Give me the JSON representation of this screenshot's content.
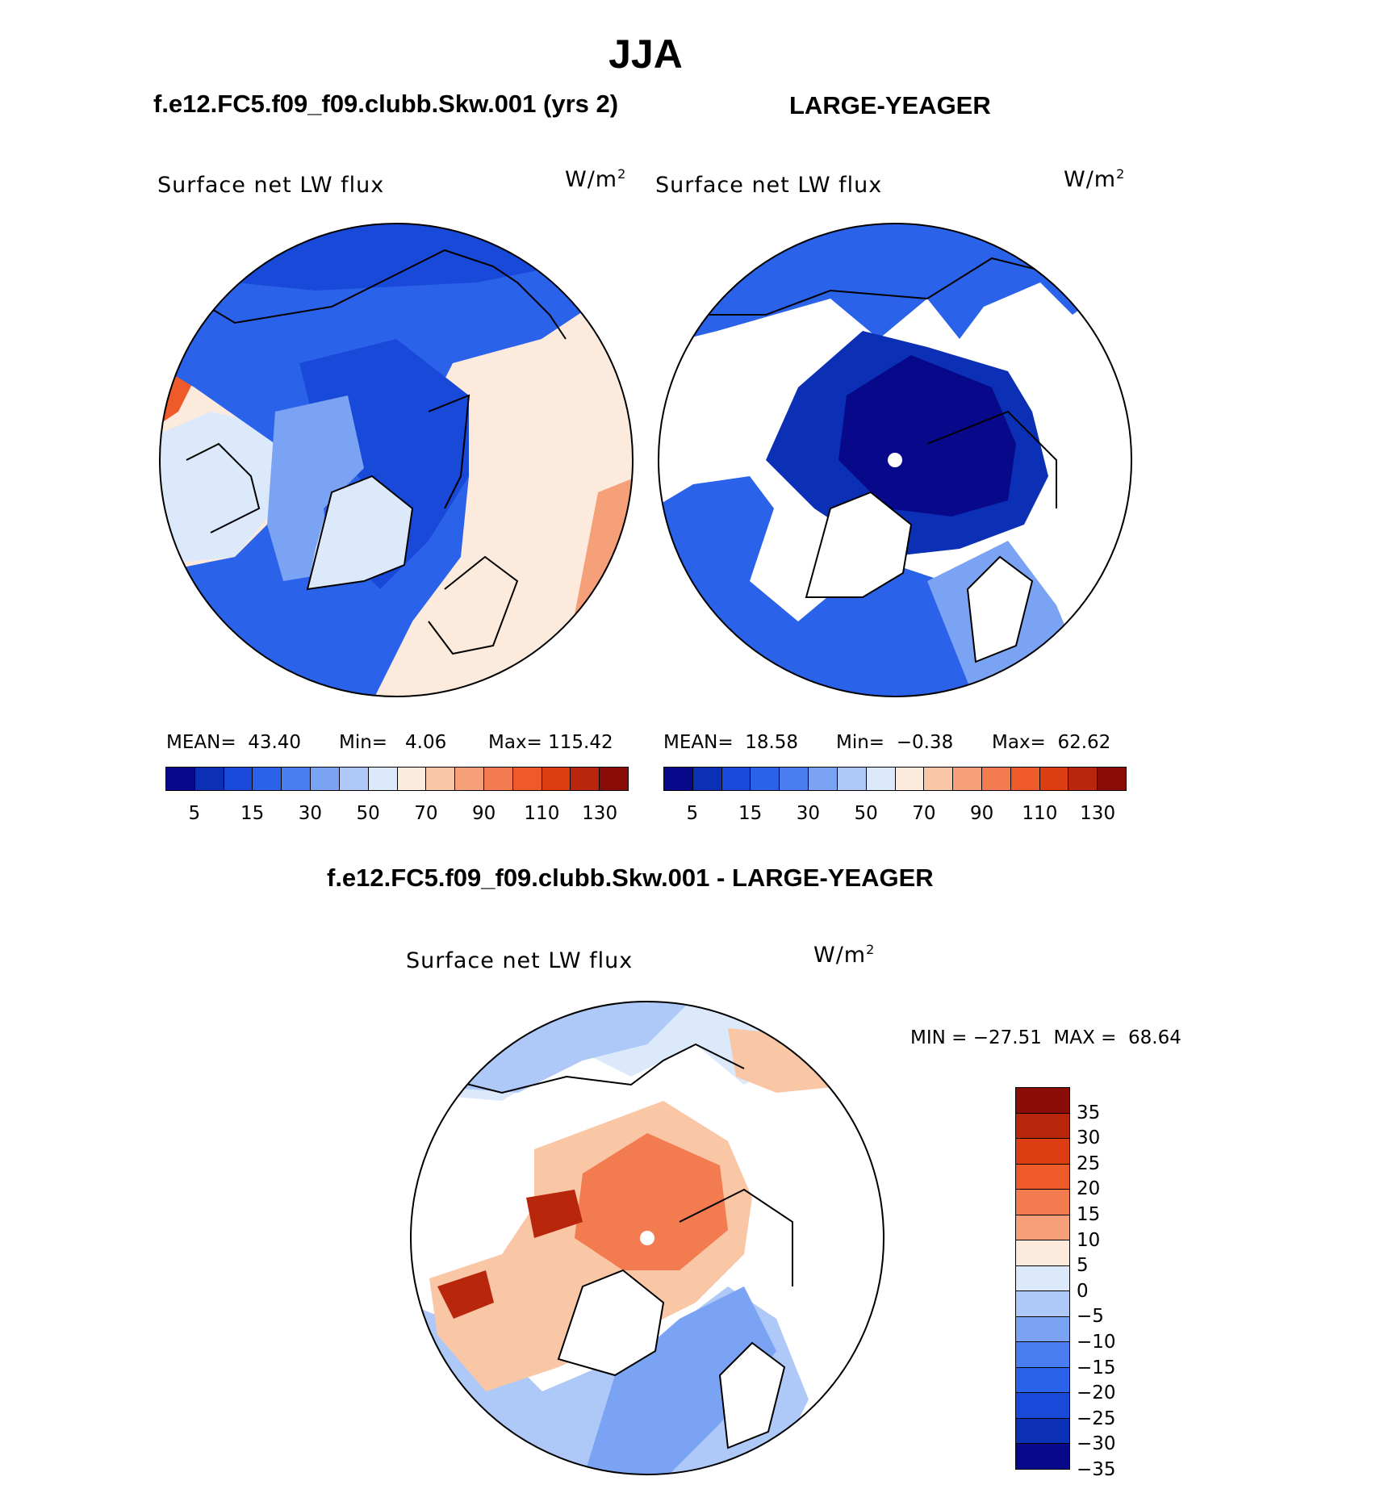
{
  "figure": {
    "title": "JJA",
    "left_header": "f.e12.FC5.f09_f09.clubb.Skw.001 (yrs 2)",
    "right_header": "LARGE-YEAGER",
    "diff_header": "f.e12.FC5.f09_f09.clubb.Skw.001 - LARGE-YEAGER"
  },
  "panels": {
    "left": {
      "variable": "Surface net LW flux",
      "units": "W/m",
      "units_sup": "2",
      "mean_label": "MEAN=",
      "mean_value": "43.40",
      "min_label": "Min=",
      "min_value": "4.06",
      "max_label": "Max=",
      "max_value": "115.42"
    },
    "right": {
      "variable": "Surface net LW flux",
      "units": "W/m",
      "units_sup": "2",
      "mean_label": "MEAN=",
      "mean_value": "18.58",
      "min_label": "Min=",
      "min_value": "−0.38",
      "max_label": "Max=",
      "max_value": "62.62"
    },
    "diff": {
      "variable": "Surface net LW flux",
      "units": "W/m",
      "units_sup": "2",
      "min_label": "MIN =",
      "min_value": "−27.51",
      "max_label": "MAX =",
      "max_value": "68.64"
    }
  },
  "colorbar_main": {
    "colors": [
      "#08088a",
      "#0b2fb5",
      "#1849d8",
      "#2b62ea",
      "#4a7ef0",
      "#7ba3f4",
      "#aec8f7",
      "#dbe9fb",
      "#fcebdc",
      "#f9c6a6",
      "#f6a07a",
      "#f27b4f",
      "#ee5a29",
      "#dc3d12",
      "#b8260b",
      "#8a0d07"
    ],
    "tick_labels": [
      "5",
      "15",
      "30",
      "50",
      "70",
      "90",
      "110",
      "130"
    ]
  },
  "colorbar_diff": {
    "colors": [
      "#8a0d07",
      "#b8260b",
      "#dc3d12",
      "#ee5a29",
      "#f27b4f",
      "#f6a07a",
      "#fcebdc",
      "#dbe9fb",
      "#aec8f7",
      "#7ba3f4",
      "#4a7ef0",
      "#2b62ea",
      "#1849d8",
      "#0b2fb5",
      "#08088a"
    ],
    "tick_labels": [
      "35",
      "30",
      "25",
      "20",
      "15",
      "10",
      "5",
      "0",
      "−5",
      "−10",
      "−15",
      "−20",
      "−25",
      "−30",
      "−35"
    ]
  },
  "map_colors": {
    "land_missing": "#ffffff",
    "coast": "#000000",
    "left_ocean_deep": "#1849d8",
    "left_ocean_mid": "#2b62ea",
    "left_ocean_light": "#7ba3f4",
    "left_land_pale": "#dbe9fb",
    "left_land_warm": "#fcebdc",
    "left_land_hot": "#f6a07a",
    "left_land_hotter": "#ee5a29",
    "right_arctic": "#08088a",
    "right_arctic_edge": "#0b2fb5",
    "right_ocean": "#2b62ea",
    "right_ocean_light": "#7ba3f4",
    "diff_arctic": "#f27b4f",
    "diff_arctic_edge": "#f9c6a6",
    "diff_dark": "#b8260b",
    "diff_blue": "#aec8f7",
    "diff_blue_mid": "#7ba3f4",
    "diff_pale": "#dbe9fb",
    "diff_warm": "#fcebdc"
  }
}
